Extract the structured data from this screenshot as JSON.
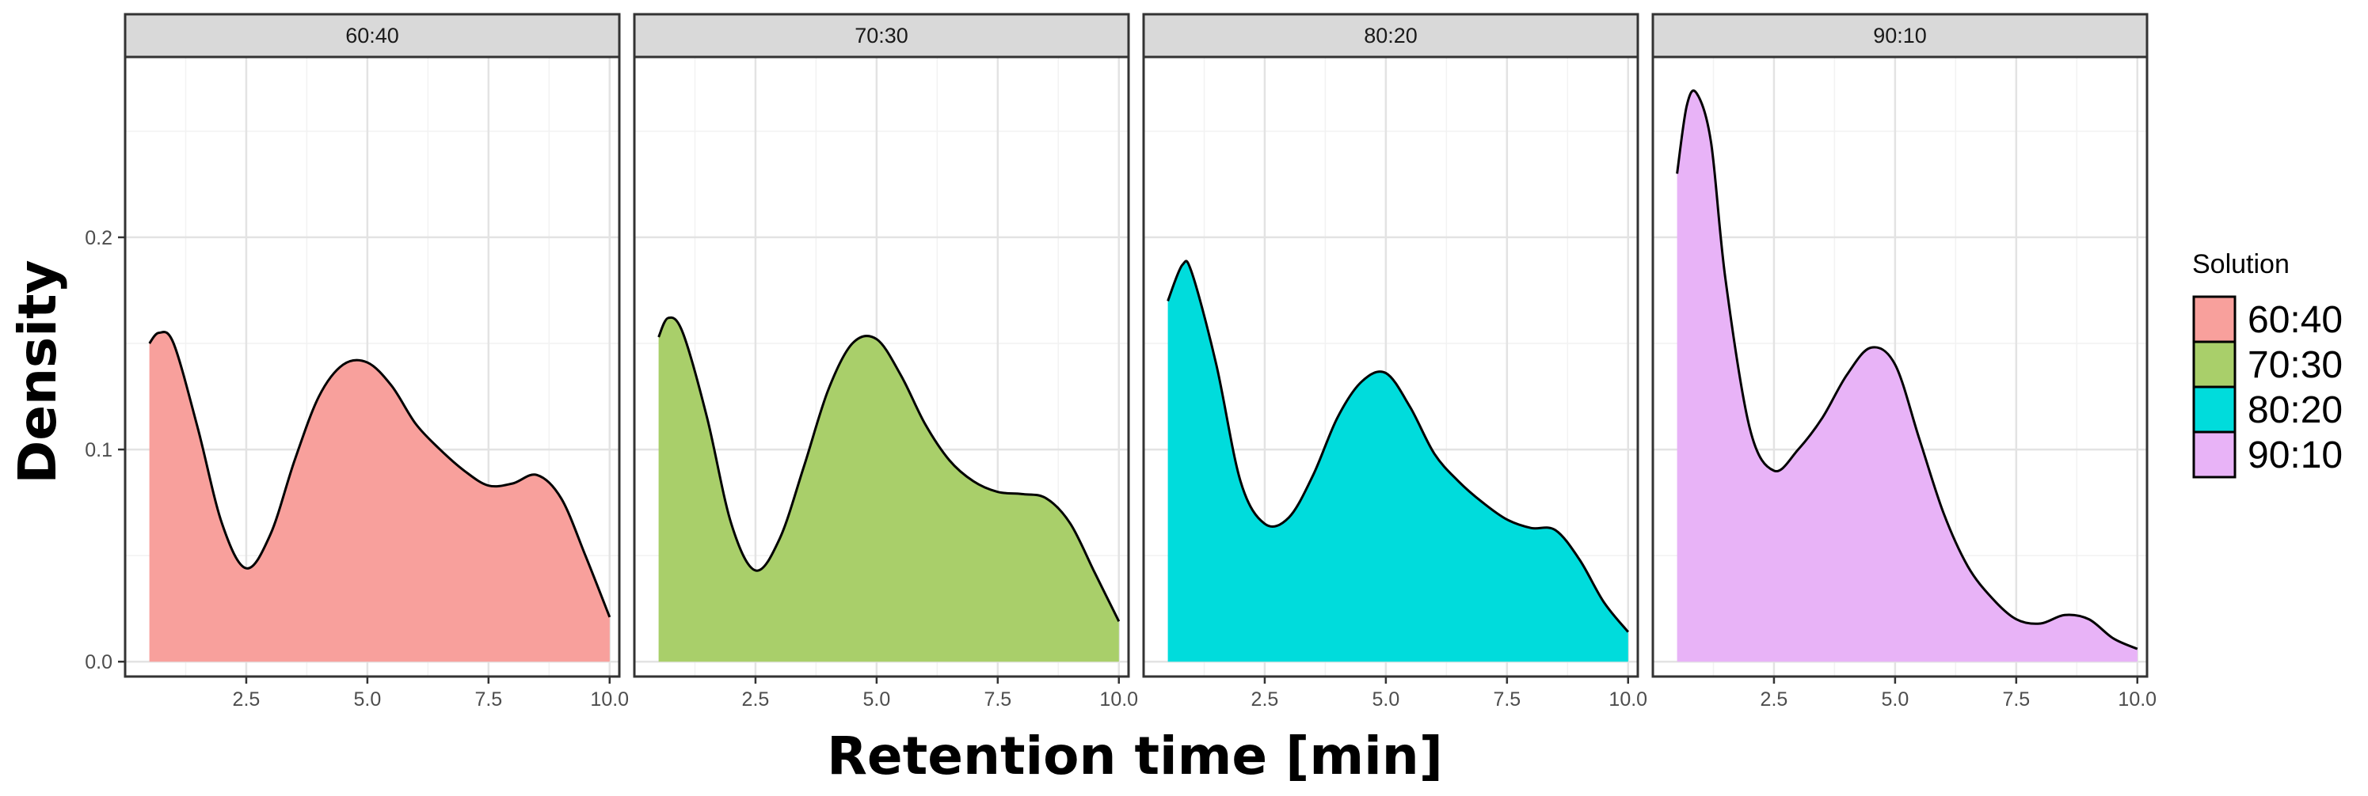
{
  "chart_data": {
    "type": "area",
    "xlabel": "Retention time [min]",
    "ylabel": "Density",
    "x_ticks": [
      "2.5",
      "5.0",
      "7.5",
      "10.0"
    ],
    "y_ticks": [
      "0.0",
      "0.1",
      "0.2"
    ],
    "xlim": [
      0.0,
      10.2
    ],
    "ylim": [
      -0.007,
      0.285
    ],
    "grid": true,
    "legend": {
      "title": "Solution",
      "placement": "right",
      "entries": [
        "60:40",
        "70:30",
        "80:20",
        "90:10"
      ]
    },
    "panels": [
      {
        "name": "60:40",
        "color": "#F8A09C",
        "x": [
          0.5,
          0.7,
          1.0,
          1.5,
          2.0,
          2.5,
          3.0,
          3.5,
          4.0,
          4.5,
          5.0,
          5.5,
          6.0,
          6.5,
          7.0,
          7.5,
          8.0,
          8.5,
          9.0,
          9.5,
          10.0
        ],
        "y": [
          0.15,
          0.155,
          0.15,
          0.11,
          0.065,
          0.044,
          0.06,
          0.095,
          0.125,
          0.14,
          0.141,
          0.13,
          0.112,
          0.1,
          0.09,
          0.083,
          0.084,
          0.088,
          0.077,
          0.05,
          0.021
        ]
      },
      {
        "name": "70:30",
        "color": "#A9CF6A",
        "x": [
          0.5,
          0.7,
          1.0,
          1.5,
          2.0,
          2.5,
          3.0,
          3.5,
          4.0,
          4.5,
          5.0,
          5.5,
          6.0,
          6.5,
          7.0,
          7.5,
          8.0,
          8.5,
          9.0,
          9.5,
          10.0
        ],
        "y": [
          0.153,
          0.162,
          0.155,
          0.115,
          0.065,
          0.043,
          0.058,
          0.092,
          0.128,
          0.15,
          0.152,
          0.135,
          0.112,
          0.095,
          0.085,
          0.08,
          0.079,
          0.077,
          0.065,
          0.042,
          0.019
        ]
      },
      {
        "name": "80:20",
        "color": "#00DCDC",
        "x": [
          0.5,
          0.8,
          1.0,
          1.5,
          2.0,
          2.5,
          3.0,
          3.5,
          4.0,
          4.5,
          5.0,
          5.5,
          6.0,
          6.5,
          7.0,
          7.5,
          8.0,
          8.5,
          9.0,
          9.5,
          10.0
        ],
        "y": [
          0.17,
          0.187,
          0.183,
          0.14,
          0.085,
          0.065,
          0.068,
          0.088,
          0.115,
          0.132,
          0.136,
          0.12,
          0.098,
          0.085,
          0.075,
          0.067,
          0.063,
          0.062,
          0.048,
          0.028,
          0.014
        ]
      },
      {
        "name": "90:10",
        "color": "#E8B3F7",
        "x": [
          0.5,
          0.7,
          0.9,
          1.2,
          1.5,
          2.0,
          2.5,
          3.0,
          3.5,
          4.0,
          4.5,
          5.0,
          5.5,
          6.0,
          6.5,
          7.0,
          7.5,
          8.0,
          8.5,
          9.0,
          9.5,
          10.0
        ],
        "y": [
          0.23,
          0.262,
          0.268,
          0.245,
          0.18,
          0.11,
          0.09,
          0.1,
          0.115,
          0.135,
          0.148,
          0.14,
          0.105,
          0.07,
          0.045,
          0.03,
          0.02,
          0.018,
          0.022,
          0.02,
          0.011,
          0.006
        ]
      }
    ]
  }
}
